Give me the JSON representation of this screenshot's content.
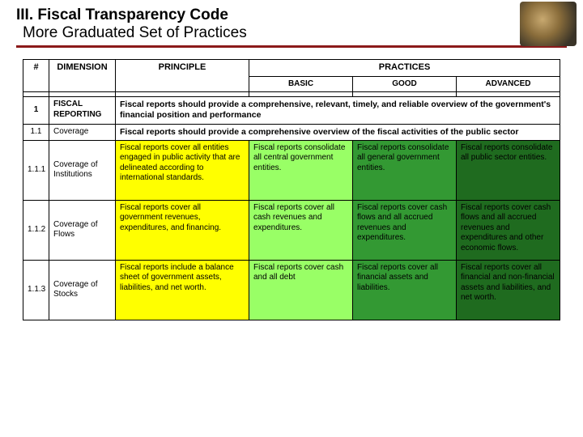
{
  "header": {
    "line1": "III. Fiscal Transparency Code",
    "line2": "More Graduated Set of Practices"
  },
  "colors": {
    "divider": "#8b1a1a",
    "yellow": "#ffff00",
    "lightgreen": "#99ff66",
    "green": "#339933",
    "darkgreen": "#1f6b1f",
    "border": "#000000",
    "background": "#ffffff"
  },
  "table": {
    "head": {
      "num": "#",
      "dimension": "DIMENSION",
      "principle": "PRINCIPLE",
      "practices": "PRACTICES",
      "basic": "BASIC",
      "good": "GOOD",
      "advanced": "ADVANCED"
    },
    "section": {
      "num": "1",
      "dimension": "FISCAL REPORTING",
      "principle": "Fiscal reports should provide a comprehensive, relevant, timely, and reliable overview of the government's financial position and performance"
    },
    "subsection": {
      "num": "1.1",
      "dimension": "Coverage",
      "principle": "Fiscal reports should provide a comprehensive overview of the fiscal activities of the public sector"
    },
    "rows": [
      {
        "num": "1.1.1",
        "dimension": "Coverage of Institutions",
        "principle": "Fiscal reports cover all entities engaged in public activity that are delineated according to international standards.",
        "basic": "Fiscal reports consolidate all central government entities.",
        "good": "Fiscal reports consolidate all general government entities.",
        "advanced": "Fiscal reports consolidate all public sector entities."
      },
      {
        "num": "1.1.2",
        "dimension": "Coverage of Flows",
        "principle": "Fiscal reports cover all government revenues, expenditures, and financing.",
        "basic": "Fiscal reports cover all cash revenues and expenditures.",
        "good": "Fiscal reports cover cash flows and all accrued revenues and expenditures.",
        "advanced": "Fiscal reports cover cash flows and all accrued revenues and expenditures and other economic flows."
      },
      {
        "num": "1.1.3",
        "dimension": "Coverage of Stocks",
        "principle": "Fiscal reports include a balance sheet of government assets, liabilities, and net worth.",
        "basic": "Fiscal reports cover cash and all debt",
        "good": "Fiscal reports cover all financial assets and liabilities.",
        "advanced": "Fiscal reports cover all financial and non-financial assets and liabilities, and net worth."
      }
    ]
  }
}
